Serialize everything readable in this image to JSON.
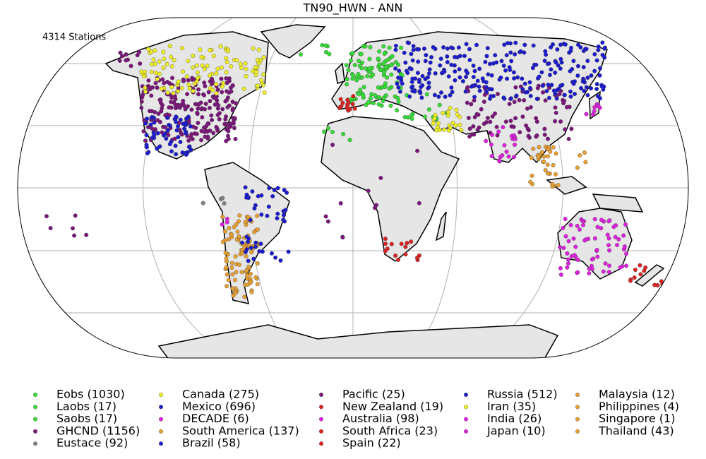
{
  "title": "TN90_HWN - ANN",
  "station_count": "4314 Stations",
  "legend": [
    {
      "label": "Eobs (1030)",
      "color": "#33dd33"
    },
    {
      "label": "Laobs (17)",
      "color": "#33dd33"
    },
    {
      "label": "Saobs (17)",
      "color": "#33dd33"
    },
    {
      "label": "GHCND (1156)",
      "color": "#7b147b"
    },
    {
      "label": "Eustace (92)",
      "color": "#808080"
    },
    {
      "label": "Canada (275)",
      "color": "#f0f020"
    },
    {
      "label": "Mexico (696)",
      "color": "#1a1ad0"
    },
    {
      "label": "DECADE (6)",
      "color": "#e020e0"
    },
    {
      "label": "South America (137)",
      "color": "#e8a030"
    },
    {
      "label": "Brazil (58)",
      "color": "#1a1ad0"
    },
    {
      "label": "Pacific (25)",
      "color": "#7b147b"
    },
    {
      "label": "New Zealand (19)",
      "color": "#dd2020"
    },
    {
      "label": "Australia (98)",
      "color": "#e020e0"
    },
    {
      "label": "South Africa (23)",
      "color": "#dd2020"
    },
    {
      "label": "Spain (22)",
      "color": "#dd2020"
    },
    {
      "label": "Russia (512)",
      "color": "#1a1ad0"
    },
    {
      "label": "Iran (35)",
      "color": "#f0f020"
    },
    {
      "label": "India (26)",
      "color": "#e020e0"
    },
    {
      "label": "Japan (10)",
      "color": "#e020e0"
    },
    {
      "label": "Malaysia (12)",
      "color": "#e8a030"
    },
    {
      "label": "Philippines (4)",
      "color": "#e8a030"
    },
    {
      "label": "Singapore (1)",
      "color": "#e8a030"
    },
    {
      "label": "Thailand (43)",
      "color": "#e8a030"
    }
  ]
}
